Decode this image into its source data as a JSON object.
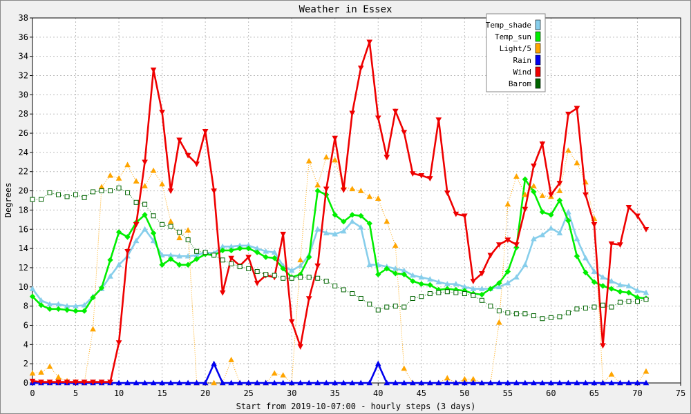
{
  "chart_data": {
    "type": "line",
    "title": "Weather in Essex",
    "xlabel": "Start from 2019-10-07:00 - hourly steps (3 days)",
    "ylabel": "Degrees",
    "xlim": [
      0,
      75
    ],
    "ylim": [
      0,
      38
    ],
    "xticks": [
      0,
      5,
      10,
      15,
      20,
      25,
      30,
      35,
      40,
      45,
      50,
      55,
      60,
      65,
      70,
      75
    ],
    "yticks": [
      0,
      2,
      4,
      6,
      8,
      10,
      12,
      14,
      16,
      18,
      20,
      22,
      24,
      26,
      28,
      30,
      32,
      34,
      36,
      38
    ],
    "grid": true,
    "legend_position": "top-right",
    "series": [
      {
        "name": "Temp_shade",
        "color": "#87ceeb",
        "style": "solid",
        "marker": "triangle",
        "values": [
          9.8,
          8.6,
          8.2,
          8.2,
          8.0,
          8.0,
          8.1,
          9.0,
          9.8,
          11.1,
          12.3,
          13.2,
          14.8,
          16.0,
          14.8,
          13.3,
          13.3,
          13.2,
          13.2,
          13.3,
          13.6,
          13.5,
          14.2,
          14.2,
          14.3,
          14.3,
          14.0,
          13.7,
          13.6,
          12.2,
          11.7,
          12.2,
          13.3,
          16.0,
          15.6,
          15.5,
          15.8,
          16.8,
          16.2,
          12.3,
          12.3,
          12.1,
          11.9,
          11.7,
          11.2,
          11.0,
          10.8,
          10.5,
          10.3,
          10.3,
          10.0,
          9.8,
          9.8,
          9.8,
          10.0,
          10.4,
          11.0,
          12.3,
          15.0,
          15.4,
          16.1,
          15.6,
          17.8,
          15.0,
          13.0,
          11.6,
          11.0,
          10.6,
          10.2,
          10.1,
          9.6,
          9.4
        ]
      },
      {
        "name": "Temp_sun",
        "color": "#00ee00",
        "style": "solid",
        "marker": "diamond",
        "values": [
          9.0,
          8.1,
          7.7,
          7.7,
          7.6,
          7.5,
          7.5,
          8.9,
          9.9,
          12.8,
          15.7,
          15.2,
          16.7,
          17.5,
          15.6,
          12.3,
          12.9,
          12.3,
          12.3,
          12.9,
          13.4,
          13.3,
          13.8,
          13.8,
          14.0,
          14.0,
          13.6,
          13.1,
          13.0,
          11.9,
          11.0,
          11.3,
          13.1,
          20.0,
          19.6,
          17.5,
          16.8,
          17.5,
          17.4,
          16.6,
          11.3,
          11.9,
          11.4,
          11.3,
          10.6,
          10.3,
          10.2,
          9.7,
          9.8,
          9.7,
          9.6,
          9.3,
          9.2,
          9.8,
          10.4,
          11.6,
          14.1,
          21.2,
          19.9,
          17.8,
          17.5,
          19.0,
          16.9,
          13.2,
          11.5,
          10.5,
          10.1,
          9.8,
          9.5,
          9.4,
          8.9,
          8.8
        ]
      },
      {
        "name": "Light/5",
        "color": "#ffa500",
        "style": "dotted",
        "marker": "triangle",
        "values": [
          1.0,
          1.1,
          1.7,
          0.6,
          0.2,
          0.1,
          0.0,
          5.6,
          20.4,
          21.6,
          21.3,
          22.7,
          21.0,
          20.5,
          22.1,
          20.7,
          16.8,
          15.1,
          15.9,
          0.0,
          0.0,
          0.0,
          0.0,
          2.4,
          0.0,
          0.0,
          0.0,
          0.0,
          1.0,
          0.8,
          0.0,
          12.8,
          23.1,
          20.6,
          23.5,
          23.2,
          20.4,
          20.2,
          20.0,
          19.4,
          19.2,
          16.8,
          14.3,
          1.5,
          0.0,
          0.0,
          0.0,
          0.0,
          0.5,
          0.0,
          0.4,
          0.4,
          0.0,
          0.0,
          6.3,
          18.6,
          21.5,
          19.6,
          20.5,
          19.5,
          19.4,
          20.0,
          24.2,
          22.9,
          20.9,
          17.1,
          0.0,
          0.9,
          0.0,
          0.0,
          0.0,
          1.2
        ]
      },
      {
        "name": "Rain",
        "color": "#0000ee",
        "style": "solid",
        "marker": "triangle",
        "values": [
          0,
          0,
          0,
          0,
          0,
          0,
          0,
          0,
          0,
          0,
          0,
          0,
          0,
          0,
          0,
          0,
          0,
          0,
          0,
          0,
          0,
          2.0,
          0,
          0,
          0,
          0,
          0,
          0,
          0,
          0,
          0,
          0,
          0,
          0,
          0,
          0,
          0,
          0,
          0,
          0,
          2.0,
          0,
          0,
          0,
          0,
          0,
          0,
          0,
          0,
          0,
          0,
          0,
          0,
          0,
          0,
          0,
          0,
          0,
          0,
          0,
          0,
          0,
          0,
          0,
          0,
          0,
          0,
          0,
          0,
          0,
          0,
          0
        ]
      },
      {
        "name": "Wind",
        "color": "#ee0000",
        "style": "solid",
        "marker": "triangle-down",
        "values": [
          0.2,
          0.1,
          0.1,
          0.1,
          0.1,
          0.1,
          0.1,
          0.1,
          0.1,
          0.1,
          4.2,
          13.7,
          16.5,
          23.0,
          32.6,
          28.2,
          20.0,
          25.3,
          23.7,
          22.8,
          26.2,
          20.0,
          9.4,
          13.0,
          12.2,
          13.1,
          10.4,
          11.2,
          11.0,
          15.5,
          6.4,
          3.8,
          8.8,
          12.2,
          20.2,
          25.5,
          20.1,
          28.1,
          32.8,
          35.5,
          27.6,
          23.5,
          28.3,
          26.1,
          21.8,
          21.6,
          21.3,
          27.4,
          19.8,
          17.6,
          17.4,
          10.6,
          11.4,
          13.3,
          14.4,
          14.9,
          14.4,
          18.1,
          22.6,
          24.9,
          19.6,
          20.8,
          28.0,
          28.6,
          19.6,
          16.5,
          3.9,
          14.5,
          14.4,
          18.3,
          17.4,
          16.0
        ]
      },
      {
        "name": "Barom",
        "color": "#006400",
        "style": "dotted",
        "marker": "square",
        "values": [
          19.1,
          19.1,
          19.8,
          19.6,
          19.4,
          19.6,
          19.3,
          19.9,
          20.0,
          20.0,
          20.3,
          19.8,
          18.8,
          18.6,
          17.4,
          16.5,
          16.3,
          15.7,
          14.9,
          13.7,
          13.6,
          13.3,
          12.8,
          12.4,
          12.1,
          11.9,
          11.6,
          11.3,
          11.2,
          10.9,
          10.9,
          11.0,
          11.0,
          10.9,
          10.6,
          10.1,
          9.7,
          9.3,
          8.8,
          8.2,
          7.6,
          7.9,
          8.0,
          7.9,
          8.8,
          9.0,
          9.3,
          9.4,
          9.5,
          9.4,
          9.3,
          9.1,
          8.6,
          8.0,
          7.5,
          7.3,
          7.2,
          7.2,
          7.0,
          6.7,
          6.8,
          6.9,
          7.3,
          7.7,
          7.8,
          7.9,
          8.1,
          7.9,
          8.4,
          8.5,
          8.5,
          8.7
        ]
      }
    ]
  }
}
